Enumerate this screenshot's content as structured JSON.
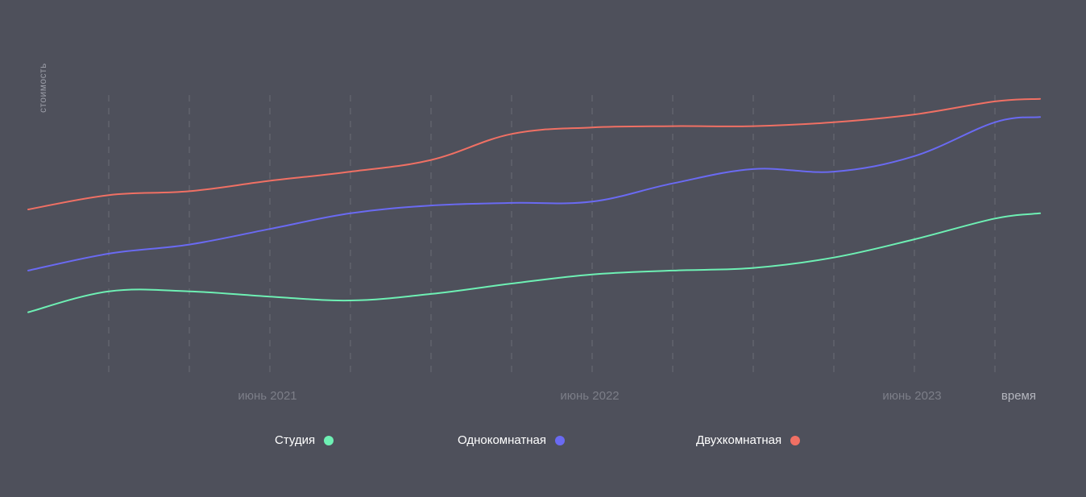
{
  "chart_data": {
    "type": "line",
    "ylabel": "стоимость",
    "xlabel": "время",
    "x_ticks": [
      {
        "label": "июнь 2021",
        "index": 3
      },
      {
        "label": "июнь 2022",
        "index": 7
      },
      {
        "label": "июнь 2023",
        "index": 11
      }
    ],
    "x": [
      0,
      1,
      2,
      3,
      4,
      5,
      6,
      7,
      8,
      9,
      10,
      11,
      12,
      12.56
    ],
    "grid_x": [
      1,
      2,
      3,
      4,
      5,
      6,
      7,
      8,
      9,
      10,
      11,
      12
    ],
    "ylim": [
      0,
      100
    ],
    "grid": "vertical-dashed",
    "legend": "bottom-center",
    "series": [
      {
        "name": "Студия",
        "color": "#6ef0b4",
        "values": [
          15,
          23,
          23,
          21,
          19.5,
          22,
          26,
          29.5,
          31,
          32,
          36,
          43,
          51,
          53
        ]
      },
      {
        "name": "Однокомнатная",
        "color": "#6a6af2",
        "values": [
          31,
          37.5,
          41,
          47,
          53,
          56,
          57,
          57.5,
          64.5,
          70,
          69,
          75,
          88,
          90
        ]
      },
      {
        "name": "Двухкомнатная",
        "color": "#f07064",
        "values": [
          54.5,
          60,
          61.5,
          65.5,
          69,
          73.5,
          83.5,
          86,
          86.5,
          86.5,
          88,
          91,
          96,
          97
        ]
      }
    ]
  }
}
